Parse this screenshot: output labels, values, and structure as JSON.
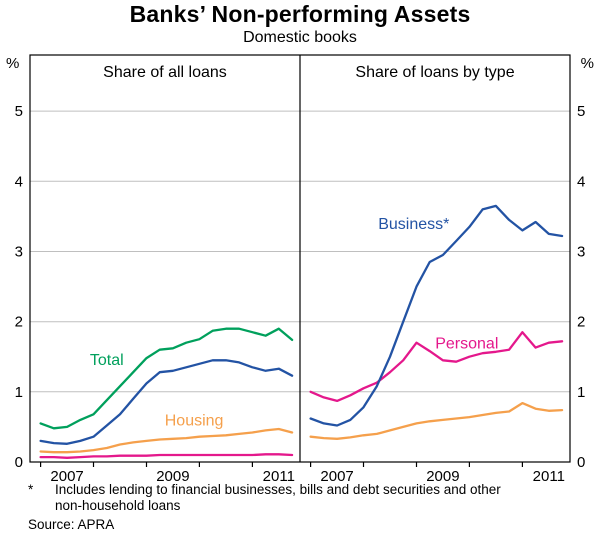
{
  "title": "Banks’ Non-performing Assets",
  "subtitle": "Domestic books",
  "y_axis": {
    "unit": "%",
    "ticks": [
      0,
      1,
      2,
      3,
      4,
      5
    ]
  },
  "footnote": {
    "marker": "*",
    "text1": "Includes lending to financial businesses, bills and debt securities and other",
    "text2": "non-household loans",
    "source": "Source: APRA"
  },
  "chart_data": [
    {
      "type": "line",
      "side": "left",
      "title": "Share of all loans",
      "xlim": [
        2006.8,
        2011.9
      ],
      "ylim": [
        0,
        5.8
      ],
      "tick_years": [
        2007,
        2008,
        2009,
        2010,
        2011
      ],
      "x_label_years": [
        2007,
        2009,
        2011
      ],
      "x": [
        2007,
        2007.25,
        2007.5,
        2007.75,
        2008,
        2008.25,
        2008.5,
        2008.75,
        2009,
        2009.25,
        2009.5,
        2009.75,
        2010,
        2010.25,
        2010.5,
        2010.75,
        2011,
        2011.25,
        2011.5,
        2011.75
      ],
      "series": [
        {
          "name": "housing-left",
          "label": "Housing",
          "color": "#F5A04C",
          "label_at": {
            "x": 2009.9,
            "y": 0.52
          },
          "values": [
            0.15,
            0.14,
            0.14,
            0.15,
            0.17,
            0.2,
            0.25,
            0.28,
            0.3,
            0.32,
            0.33,
            0.34,
            0.36,
            0.37,
            0.38,
            0.4,
            0.42,
            0.45,
            0.47,
            0.42
          ]
        },
        {
          "name": "pink-line",
          "label": "",
          "color": "#E4188C",
          "label_at": null,
          "values": [
            0.07,
            0.07,
            0.06,
            0.07,
            0.08,
            0.08,
            0.09,
            0.09,
            0.09,
            0.1,
            0.1,
            0.1,
            0.1,
            0.1,
            0.1,
            0.1,
            0.1,
            0.11,
            0.11,
            0.1
          ]
        },
        {
          "name": "blue-line",
          "label": "",
          "color": "#2353A4",
          "label_at": null,
          "values": [
            0.3,
            0.27,
            0.26,
            0.3,
            0.36,
            0.52,
            0.68,
            0.9,
            1.12,
            1.28,
            1.3,
            1.35,
            1.4,
            1.45,
            1.45,
            1.42,
            1.35,
            1.3,
            1.33,
            1.23
          ]
        },
        {
          "name": "total",
          "label": "Total",
          "color": "#00A05C",
          "label_at": {
            "x": 2008.25,
            "y": 1.38
          },
          "values": [
            0.55,
            0.48,
            0.5,
            0.6,
            0.68,
            0.88,
            1.08,
            1.28,
            1.48,
            1.6,
            1.62,
            1.7,
            1.75,
            1.87,
            1.9,
            1.9,
            1.85,
            1.8,
            1.9,
            1.74
          ]
        }
      ]
    },
    {
      "type": "line",
      "side": "right",
      "title": "Share of loans by type",
      "xlim": [
        2006.8,
        2011.9
      ],
      "ylim": [
        0,
        5.8
      ],
      "tick_years": [
        2007,
        2008,
        2009,
        2010,
        2011
      ],
      "x_label_years": [
        2007,
        2009,
        2011
      ],
      "x": [
        2007,
        2007.25,
        2007.5,
        2007.75,
        2008,
        2008.25,
        2008.5,
        2008.75,
        2009,
        2009.25,
        2009.5,
        2009.75,
        2010,
        2010.25,
        2010.5,
        2010.75,
        2011,
        2011.25,
        2011.5,
        2011.75
      ],
      "series": [
        {
          "name": "housing-right",
          "label": "",
          "color": "#F5A04C",
          "label_at": null,
          "values": [
            0.36,
            0.34,
            0.33,
            0.35,
            0.38,
            0.4,
            0.45,
            0.5,
            0.55,
            0.58,
            0.6,
            0.62,
            0.64,
            0.67,
            0.7,
            0.72,
            0.84,
            0.76,
            0.73,
            0.74
          ]
        },
        {
          "name": "personal",
          "label": "Personal",
          "color": "#E4188C",
          "label_at": {
            "x": 2009.95,
            "y": 1.62
          },
          "values": [
            1.0,
            0.92,
            0.87,
            0.95,
            1.05,
            1.13,
            1.28,
            1.45,
            1.7,
            1.58,
            1.45,
            1.43,
            1.5,
            1.55,
            1.57,
            1.6,
            1.85,
            1.63,
            1.7,
            1.72
          ]
        },
        {
          "name": "business",
          "label": "Business*",
          "color": "#2353A4",
          "label_at": {
            "x": 2008.95,
            "y": 3.32
          },
          "values": [
            0.62,
            0.55,
            0.52,
            0.6,
            0.78,
            1.08,
            1.5,
            2.0,
            2.5,
            2.85,
            2.95,
            3.15,
            3.35,
            3.6,
            3.65,
            3.45,
            3.3,
            3.42,
            3.25,
            3.22
          ]
        }
      ]
    }
  ]
}
